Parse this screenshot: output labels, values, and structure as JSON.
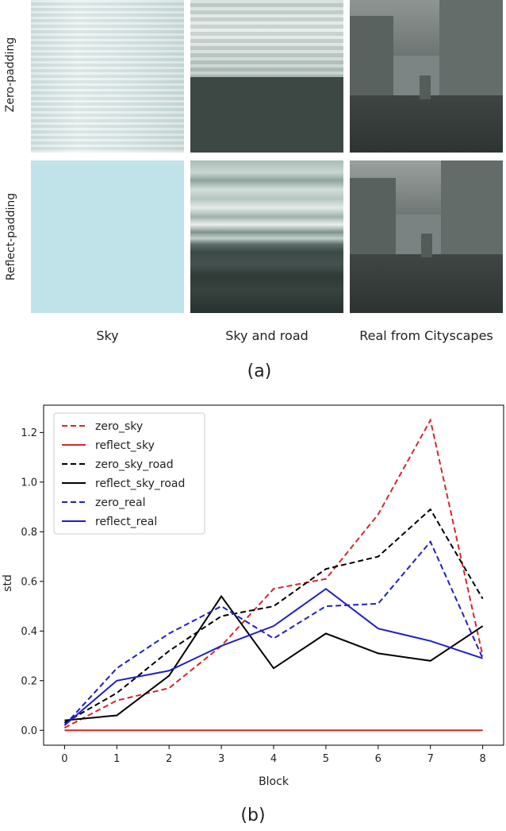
{
  "figure_a": {
    "row_labels": [
      "Zero-padding",
      "Reflect-padding"
    ],
    "col_labels": [
      "Sky",
      "Sky and road",
      "Real from Cityscapes"
    ],
    "caption": "(a)"
  },
  "figure_b": {
    "caption": "(b)"
  },
  "chart_data": {
    "type": "line",
    "xlabel": "Block",
    "ylabel": "std",
    "x": [
      0,
      1,
      2,
      3,
      4,
      5,
      6,
      7,
      8
    ],
    "xlim": [
      -0.4,
      8.4
    ],
    "ylim": [
      -0.06,
      1.31
    ],
    "xticks": [
      "0",
      "1",
      "2",
      "3",
      "4",
      "5",
      "6",
      "7",
      "8"
    ],
    "yticks": [
      "0.0",
      "0.2",
      "0.4",
      "0.6",
      "0.8",
      "1.0",
      "1.2"
    ],
    "legend_position": "top-left",
    "series": [
      {
        "name": "zero_sky",
        "color": "#d62728",
        "dash": "dashed",
        "values": [
          0.01,
          0.12,
          0.17,
          0.34,
          0.57,
          0.61,
          0.87,
          1.25,
          0.3
        ]
      },
      {
        "name": "reflect_sky",
        "color": "#d62728",
        "dash": "solid",
        "values": [
          0.0,
          0.0,
          0.0,
          0.0,
          0.0,
          0.0,
          0.0,
          0.0,
          0.0
        ]
      },
      {
        "name": "zero_sky_road",
        "color": "#000000",
        "dash": "dashed",
        "values": [
          0.03,
          0.15,
          0.32,
          0.46,
          0.5,
          0.65,
          0.7,
          0.89,
          0.53
        ]
      },
      {
        "name": "reflect_sky_road",
        "color": "#000000",
        "dash": "solid",
        "values": [
          0.04,
          0.06,
          0.22,
          0.54,
          0.25,
          0.39,
          0.31,
          0.28,
          0.42
        ]
      },
      {
        "name": "zero_real",
        "color": "#1f1fc8",
        "dash": "dashed",
        "values": [
          0.02,
          0.25,
          0.39,
          0.5,
          0.37,
          0.5,
          0.51,
          0.76,
          0.29
        ]
      },
      {
        "name": "reflect_real",
        "color": "#1f1fc8",
        "dash": "solid",
        "values": [
          0.02,
          0.2,
          0.24,
          0.34,
          0.42,
          0.57,
          0.41,
          0.36,
          0.29
        ]
      }
    ]
  }
}
